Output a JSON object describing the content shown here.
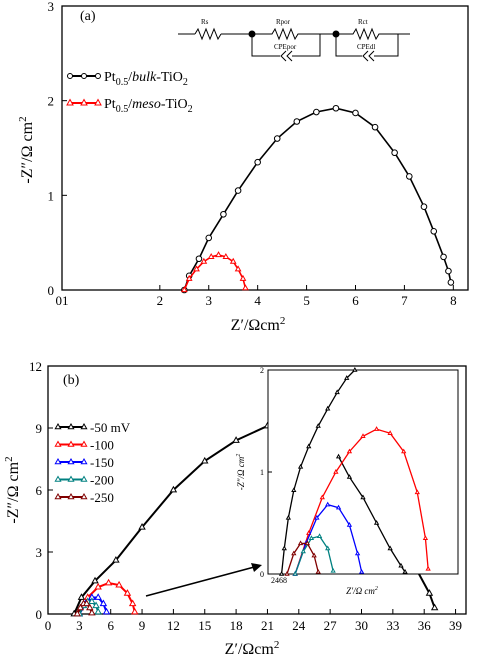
{
  "colors": {
    "axis": "#000000",
    "black": "#000000",
    "red": "#ff0000",
    "blue": "#0000ff",
    "teal": "#008080",
    "maroon": "#800000"
  },
  "chart_data": [
    {
      "panel": "(a)",
      "type": "scatter",
      "xlabel": "Z'/Ωcm²",
      "ylabel": "-Z''/Ω cm²",
      "xlim": [
        0,
        8.3
      ],
      "ylim": [
        0,
        3
      ],
      "x_ticks": [
        "01",
        "2",
        "3",
        "4",
        "5",
        "6",
        "7",
        "8"
      ],
      "y_ticks": [
        "0",
        "1",
        "2",
        "3"
      ],
      "legend": [
        "Pt0.5/bulk-TiO2",
        "Pt0.5/meso-TiO2"
      ],
      "circuit_labels": [
        "Rs",
        "Rpor",
        "CPEpor",
        "Rct",
        "CPEdl"
      ],
      "series": [
        {
          "name": "Pt0.5/bulk-TiO2",
          "color": "#000000",
          "marker": "circle",
          "x": [
            2.5,
            2.6,
            2.8,
            3.0,
            3.3,
            3.6,
            4.0,
            4.4,
            4.8,
            5.2,
            5.6,
            6.0,
            6.4,
            6.8,
            7.1,
            7.4,
            7.6,
            7.8,
            7.9,
            7.95
          ],
          "y": [
            0.0,
            0.15,
            0.33,
            0.55,
            0.8,
            1.05,
            1.35,
            1.6,
            1.78,
            1.88,
            1.92,
            1.87,
            1.72,
            1.45,
            1.2,
            0.88,
            0.62,
            0.35,
            0.2,
            0.08
          ]
        },
        {
          "name": "Pt0.5/meso-TiO2",
          "color": "#ff0000",
          "marker": "triangle",
          "x": [
            2.5,
            2.6,
            2.75,
            2.9,
            3.05,
            3.2,
            3.35,
            3.5,
            3.6,
            3.7,
            3.75
          ],
          "y": [
            0.0,
            0.12,
            0.22,
            0.3,
            0.35,
            0.37,
            0.35,
            0.3,
            0.22,
            0.12,
            0.02
          ]
        }
      ]
    },
    {
      "panel": "(b)",
      "type": "scatter",
      "xlabel": "Z'/Ωcm²",
      "ylabel": "-Z''/Ω cm²",
      "xlim": [
        0,
        40
      ],
      "ylim": [
        0,
        12
      ],
      "x_ticks": [
        "0",
        "3",
        "6",
        "9",
        "12",
        "15",
        "18",
        "21",
        "24",
        "27",
        "30",
        "33",
        "36",
        "39"
      ],
      "y_ticks": [
        "0",
        "3",
        "6",
        "9",
        "12"
      ],
      "legend": [
        "-50 mV",
        "-100",
        "-150",
        "-200",
        "-250"
      ],
      "series": [
        {
          "name": "-50 mV",
          "color": "#000000",
          "marker": "triangle",
          "x": [
            2.5,
            3.2,
            4.5,
            6.5,
            9.0,
            12.0,
            15.0,
            18.0,
            21.0,
            23.0,
            25.0,
            27.0,
            29.0,
            31.0,
            33.0,
            35.0,
            36.5,
            37.0
          ],
          "y": [
            0.0,
            0.8,
            1.6,
            2.6,
            4.2,
            6.0,
            7.4,
            8.4,
            9.1,
            9.3,
            9.1,
            8.5,
            7.4,
            6.0,
            4.2,
            2.4,
            1.0,
            0.3
          ]
        },
        {
          "name": "-100",
          "color": "#ff0000",
          "marker": "triangle",
          "x": [
            3.0,
            3.8,
            4.8,
            5.8,
            6.8,
            7.6,
            8.1,
            8.3
          ],
          "y": [
            0.0,
            0.8,
            1.3,
            1.5,
            1.4,
            1.0,
            0.5,
            0.1
          ]
        },
        {
          "name": "-150",
          "color": "#0000ff",
          "marker": "triangle",
          "x": [
            3.0,
            3.6,
            4.2,
            4.8,
            5.3,
            5.6
          ],
          "y": [
            0.0,
            0.5,
            0.8,
            0.8,
            0.5,
            0.1
          ]
        },
        {
          "name": "-200",
          "color": "#008080",
          "marker": "triangle",
          "x": [
            3.0,
            3.4,
            3.8,
            4.2,
            4.6,
            4.8
          ],
          "y": [
            0.0,
            0.4,
            0.6,
            0.6,
            0.4,
            0.1
          ]
        },
        {
          "name": "-250",
          "color": "#800000",
          "marker": "triangle",
          "x": [
            2.8,
            3.1,
            3.4,
            3.7,
            4.0,
            4.2
          ],
          "y": [
            0.0,
            0.3,
            0.5,
            0.5,
            0.3,
            0.05
          ]
        }
      ]
    },
    {
      "panel": "(b) inset",
      "type": "scatter",
      "xlabel": "Z'/Ω cm²",
      "ylabel": "-Z''/Ω cm²",
      "x_tick_label": "2468",
      "y_ticks": [
        "0",
        "1",
        "2"
      ],
      "xlim": [
        2,
        9
      ],
      "ylim": [
        0,
        2
      ],
      "series": [
        {
          "name": "-50 mV",
          "color": "#000000",
          "marker": "triangle",
          "x": [
            2.5,
            2.6,
            2.75,
            2.95,
            3.2,
            3.5,
            3.85,
            4.2,
            4.55,
            4.9,
            5.2
          ],
          "y": [
            0.0,
            0.25,
            0.55,
            0.82,
            1.05,
            1.25,
            1.45,
            1.62,
            1.78,
            1.92,
            2.0
          ]
        },
        {
          "name": "-50 mV tail",
          "color": "#000000",
          "marker": "triangle",
          "x": [
            4.6,
            5.0,
            5.5,
            6.0,
            6.5,
            6.9,
            7.05
          ],
          "y": [
            1.15,
            0.95,
            0.75,
            0.5,
            0.25,
            0.08,
            0.02
          ]
        },
        {
          "name": "-100",
          "color": "#ff0000",
          "marker": "triangle",
          "x": [
            3.0,
            3.5,
            4.0,
            4.5,
            5.0,
            5.5,
            6.0,
            6.5,
            7.0,
            7.5,
            7.8,
            7.9
          ],
          "y": [
            0.0,
            0.4,
            0.75,
            1.0,
            1.2,
            1.35,
            1.42,
            1.38,
            1.2,
            0.8,
            0.35,
            0.05
          ]
        },
        {
          "name": "-150",
          "color": "#0000ff",
          "marker": "triangle",
          "x": [
            3.0,
            3.4,
            3.8,
            4.2,
            4.6,
            5.0,
            5.3,
            5.45
          ],
          "y": [
            0.0,
            0.3,
            0.55,
            0.68,
            0.65,
            0.48,
            0.2,
            0.02
          ]
        },
        {
          "name": "-200",
          "color": "#008080",
          "marker": "triangle",
          "x": [
            3.0,
            3.3,
            3.6,
            3.9,
            4.2,
            4.4
          ],
          "y": [
            0.0,
            0.22,
            0.35,
            0.37,
            0.25,
            0.03
          ]
        },
        {
          "name": "-250",
          "color": "#800000",
          "marker": "triangle",
          "x": [
            2.7,
            2.95,
            3.2,
            3.45,
            3.7,
            3.85
          ],
          "y": [
            0.0,
            0.2,
            0.3,
            0.3,
            0.18,
            0.02
          ]
        }
      ]
    }
  ]
}
